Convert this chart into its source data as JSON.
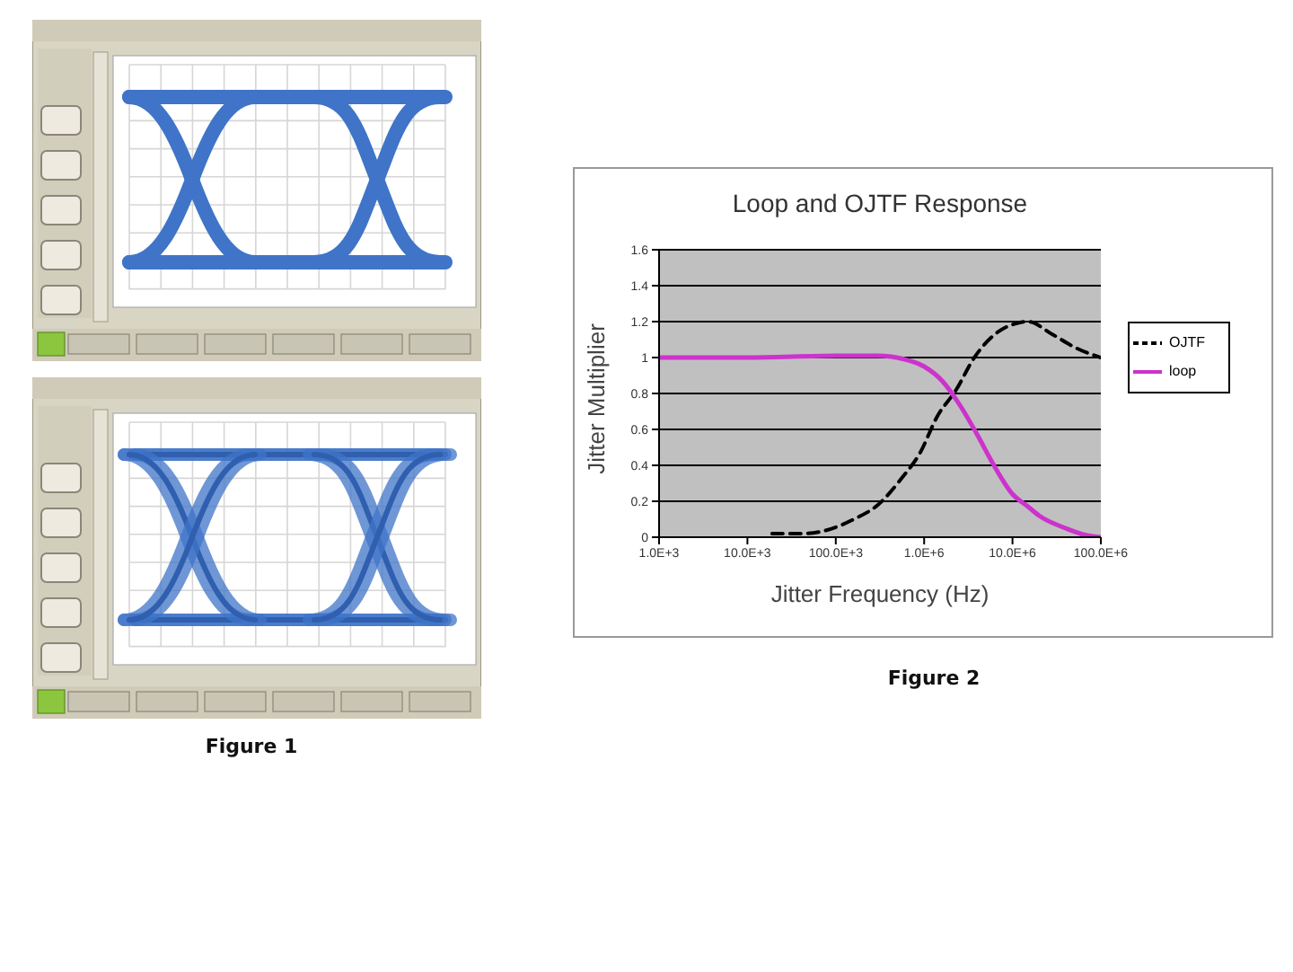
{
  "chart_data": {
    "type": "line",
    "title": "Loop and OJTF Response",
    "xlabel": "Jitter Frequency (Hz)",
    "ylabel": "Jitter Multiplier",
    "log": "x",
    "xlim": [
      1000,
      100000000
    ],
    "xticks": [
      {
        "value": 1000,
        "label": "1.0E+3"
      },
      {
        "value": 10000,
        "label": "10.0E+3"
      },
      {
        "value": 100000,
        "label": "100.0E+3"
      },
      {
        "value": 1000000,
        "label": "1.0E+6"
      },
      {
        "value": 10000000,
        "label": "10.0E+6"
      },
      {
        "value": 100000000,
        "label": "100.0E+6"
      }
    ],
    "ylim": [
      0,
      1.6
    ],
    "yticks": [
      0,
      0.2,
      0.4,
      0.6,
      0.8,
      1,
      1.2,
      1.4,
      1.6
    ],
    "grid": "y",
    "legend": "right",
    "marker": "none",
    "series": [
      {
        "name": "OJTF",
        "color": "#000000",
        "line_style": "dashed",
        "x": [
          19000,
          40000,
          80000,
          160000,
          300000,
          560000,
          900000,
          1400000,
          2300000,
          3700000,
          6000000,
          11000000,
          15000000,
          28000000,
          54000000,
          100000000
        ],
        "values": [
          0.02,
          0.02,
          0.04,
          0.1,
          0.18,
          0.33,
          0.47,
          0.67,
          0.82,
          1.0,
          1.12,
          1.19,
          1.2,
          1.13,
          1.05,
          1.0
        ]
      },
      {
        "name": "loop",
        "color": "#cc33cc",
        "line_style": "solid",
        "x": [
          1000,
          10000,
          100000,
          300000,
          600000,
          1000000,
          1600000,
          2500000,
          4000000,
          6000000,
          10000000,
          15000000,
          20000000,
          40000000,
          70000000,
          100000000
        ],
        "values": [
          1.0,
          1.0,
          1.01,
          1.01,
          0.99,
          0.95,
          0.87,
          0.74,
          0.57,
          0.41,
          0.24,
          0.17,
          0.12,
          0.05,
          0.01,
          0
        ]
      }
    ],
    "annotations": [
      "Figure 1",
      "Figure 2"
    ]
  }
}
